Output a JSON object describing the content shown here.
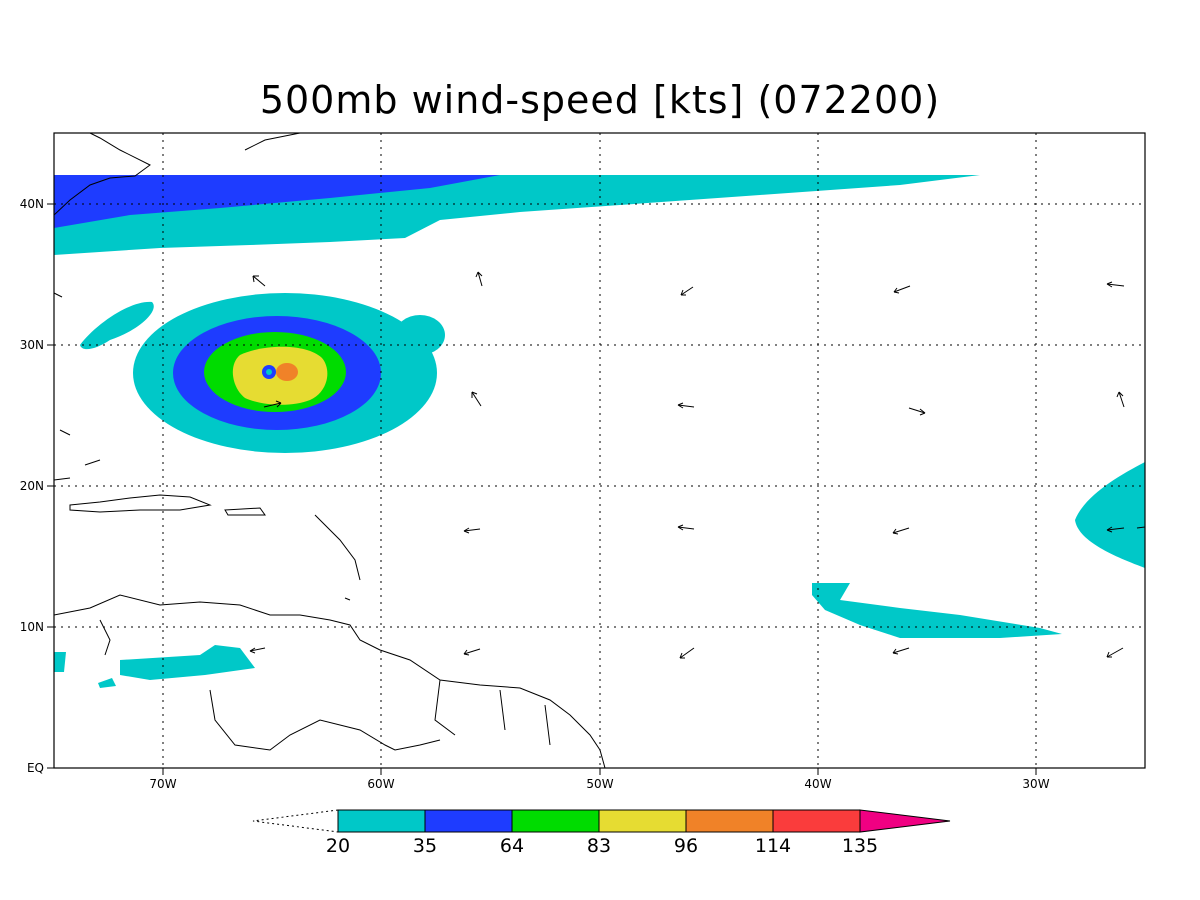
{
  "title": "500mb wind-speed [kts] (072200)",
  "lon_labels": [
    "70W",
    "60W",
    "50W",
    "40W",
    "30W"
  ],
  "lat_labels": [
    "40N",
    "30N",
    "20N",
    "10N",
    "EQ"
  ],
  "colorbar": {
    "labels": [
      "20",
      "35",
      "64",
      "83",
      "96",
      "114",
      "135"
    ],
    "colors": [
      "#00c8c8",
      "#1e3cff",
      "#00dc00",
      "#e6dc32",
      "#f08228",
      "#fa3c3c",
      "#f00082"
    ]
  }
}
